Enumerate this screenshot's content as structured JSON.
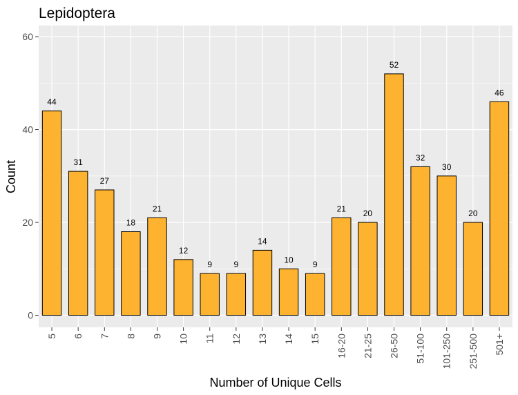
{
  "chart_data": {
    "type": "bar",
    "title": "Lepidoptera",
    "xlabel": "Number of Unique Cells",
    "ylabel": "Count",
    "categories": [
      "5",
      "6",
      "7",
      "8",
      "9",
      "10",
      "11",
      "12",
      "13",
      "14",
      "15",
      "16-20",
      "21-25",
      "26-50",
      "51-100",
      "101-250",
      "251-500",
      "501+"
    ],
    "values": [
      44,
      31,
      27,
      18,
      21,
      12,
      9,
      9,
      14,
      10,
      9,
      21,
      20,
      52,
      32,
      30,
      20,
      46
    ],
    "data_labels": [
      "44",
      "31",
      "27",
      "18",
      "21",
      "12",
      "9",
      "9",
      "14",
      "10",
      "9",
      "21",
      "20",
      "52",
      "32",
      "30",
      "20",
      "46"
    ],
    "y_ticks": [
      0,
      20,
      40,
      60
    ],
    "y_tick_labels": [
      "0",
      "20",
      "40",
      "60"
    ],
    "ylim": [
      -2.6,
      62.4
    ],
    "grid": true,
    "legend": "none",
    "colors": {
      "bar_fill": "#FDB32F",
      "bar_stroke": "#000000",
      "panel_background": "#EBEBEB",
      "grid_line": "#FFFFFF"
    }
  }
}
